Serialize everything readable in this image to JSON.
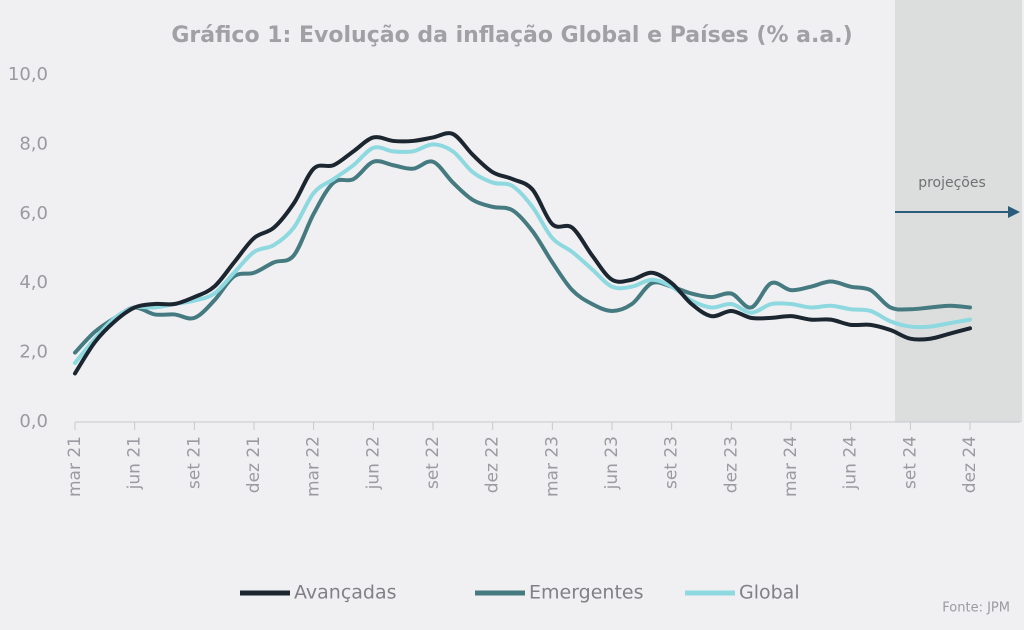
{
  "chart_data": {
    "type": "line",
    "title": "Gráfico 1: Evolução da inflação Global e Países (% a.a.)",
    "annotation": "projeções",
    "source": "Fonte: JPM",
    "categories": [
      "mar 21",
      null,
      null,
      "jun 21",
      null,
      null,
      "set 21",
      null,
      null,
      "dez 21",
      null,
      null,
      "mar 22",
      null,
      null,
      "jun 22",
      null,
      null,
      "set 22",
      null,
      null,
      "dez 22",
      null,
      null,
      "mar 23",
      null,
      null,
      "jun 23",
      null,
      null,
      "set 23",
      null,
      null,
      "dez 23",
      null,
      null,
      "mar 24",
      null,
      null,
      "jun 24",
      null,
      null,
      "set 24",
      null,
      null,
      "dez 24"
    ],
    "series": [
      {
        "name": "Avançadas",
        "color": "#1b2630",
        "values": [
          1.4,
          2.3,
          2.9,
          3.3,
          3.4,
          3.4,
          3.6,
          3.9,
          4.6,
          5.3,
          5.6,
          6.3,
          7.3,
          7.4,
          7.8,
          8.2,
          8.1,
          8.1,
          8.2,
          8.3,
          7.7,
          7.2,
          7.0,
          6.7,
          5.7,
          5.6,
          4.8,
          4.1,
          4.1,
          4.3,
          4.0,
          3.4,
          3.05,
          3.2,
          3.0,
          3.0,
          3.05,
          2.95,
          2.95,
          2.8,
          2.8,
          2.65,
          2.4,
          2.4,
          2.55,
          2.7
        ]
      },
      {
        "name": "Emergentes",
        "color": "#457b80",
        "values": [
          2.0,
          2.6,
          3.0,
          3.3,
          3.1,
          3.1,
          3.0,
          3.5,
          4.2,
          4.3,
          4.6,
          4.8,
          6.0,
          6.9,
          7.0,
          7.5,
          7.4,
          7.3,
          7.5,
          6.9,
          6.4,
          6.2,
          6.1,
          5.5,
          4.6,
          3.8,
          3.4,
          3.2,
          3.4,
          4.0,
          3.9,
          3.7,
          3.6,
          3.7,
          3.3,
          4.0,
          3.8,
          3.9,
          4.05,
          3.9,
          3.8,
          3.3,
          3.25,
          3.3,
          3.35,
          3.3
        ]
      },
      {
        "name": "Global",
        "color": "#8ed8e0",
        "values": [
          1.7,
          2.4,
          3.0,
          3.3,
          3.3,
          3.4,
          3.5,
          3.7,
          4.3,
          4.9,
          5.1,
          5.6,
          6.6,
          7.0,
          7.4,
          7.9,
          7.8,
          7.8,
          8.0,
          7.8,
          7.2,
          6.9,
          6.8,
          6.2,
          5.3,
          4.9,
          4.4,
          3.9,
          3.9,
          4.1,
          3.9,
          3.5,
          3.3,
          3.4,
          3.15,
          3.4,
          3.4,
          3.3,
          3.35,
          3.25,
          3.2,
          2.9,
          2.75,
          2.75,
          2.85,
          2.95
        ]
      }
    ],
    "ylim": [
      0,
      10
    ],
    "yticks": [
      {
        "value": 0,
        "label": "0,0"
      },
      {
        "value": 2,
        "label": "2,0"
      },
      {
        "value": 4,
        "label": "4,0"
      },
      {
        "value": 6,
        "label": "6,0"
      },
      {
        "value": 8,
        "label": "8,0"
      },
      {
        "value": 10,
        "label": "10,0"
      }
    ],
    "grid": false,
    "legend": "bottom"
  }
}
